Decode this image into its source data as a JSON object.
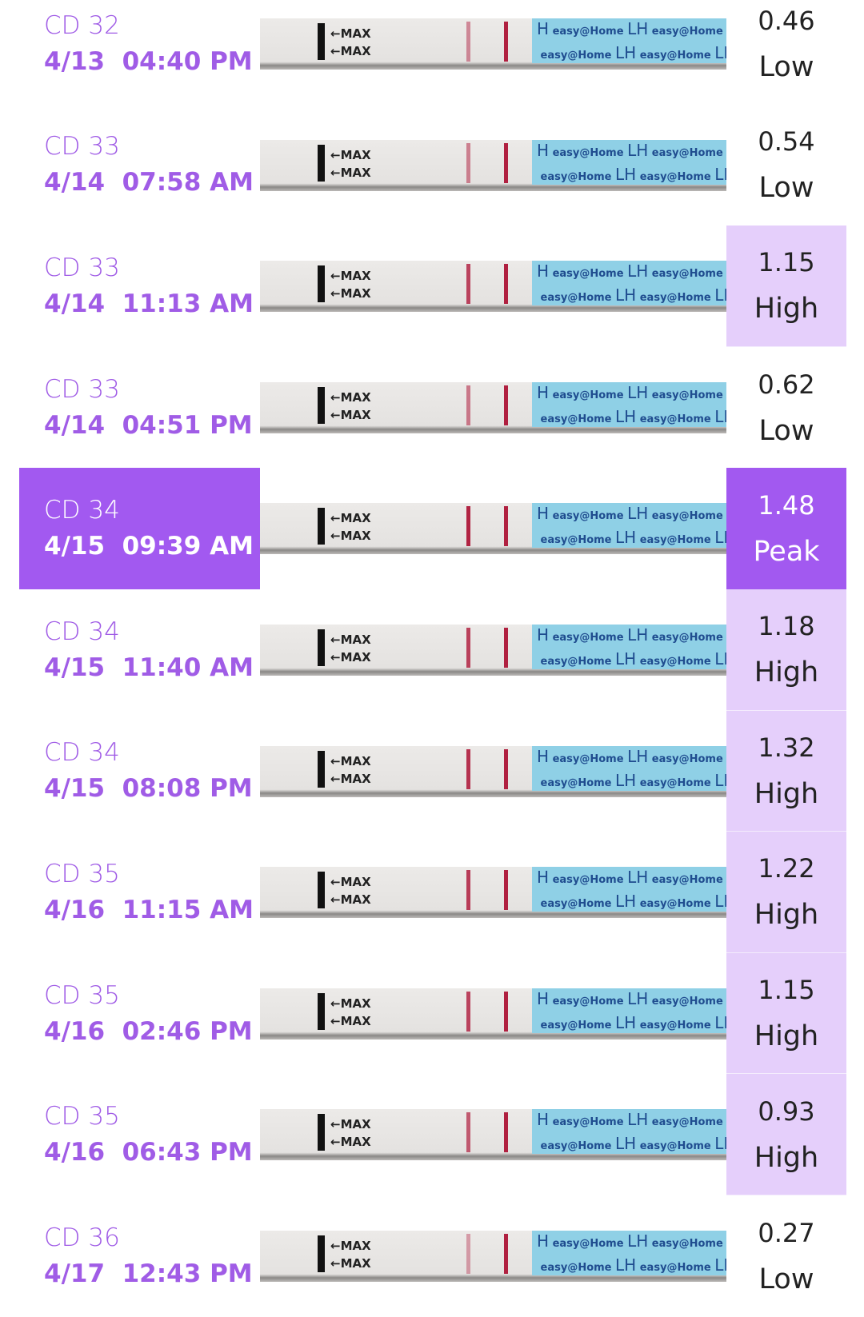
{
  "colors": {
    "accent": "#a259f0",
    "high_bg": "#e5cffb",
    "text_purple": "#a05ce6"
  },
  "strip_text": {
    "max": "←MAX",
    "lh": "LH",
    "brand": "easy@Home"
  },
  "entries": [
    {
      "cd": "CD 32",
      "date": "4/13  04:40 PM",
      "value": "0.46",
      "level": "Low",
      "selected": false
    },
    {
      "cd": "CD 33",
      "date": "4/14  07:58 AM",
      "value": "0.54",
      "level": "Low",
      "selected": false
    },
    {
      "cd": "CD 33",
      "date": "4/14  11:13 AM",
      "value": "1.15",
      "level": "High",
      "selected": false
    },
    {
      "cd": "CD 33",
      "date": "4/14  04:51 PM",
      "value": "0.62",
      "level": "Low",
      "selected": false
    },
    {
      "cd": "CD 34",
      "date": "4/15  09:39 AM",
      "value": "1.48",
      "level": "Peak",
      "selected": true
    },
    {
      "cd": "CD 34",
      "date": "4/15  11:40 AM",
      "value": "1.18",
      "level": "High",
      "selected": false
    },
    {
      "cd": "CD 34",
      "date": "4/15  08:08 PM",
      "value": "1.32",
      "level": "High",
      "selected": false
    },
    {
      "cd": "CD 35",
      "date": "4/16  11:15 AM",
      "value": "1.22",
      "level": "High",
      "selected": false
    },
    {
      "cd": "CD 35",
      "date": "4/16  02:46 PM",
      "value": "1.15",
      "level": "High",
      "selected": false
    },
    {
      "cd": "CD 35",
      "date": "4/16  06:43 PM",
      "value": "0.93",
      "level": "High",
      "selected": false
    },
    {
      "cd": "CD 36",
      "date": "4/17  12:43 PM",
      "value": "0.27",
      "level": "Low",
      "selected": false
    }
  ]
}
